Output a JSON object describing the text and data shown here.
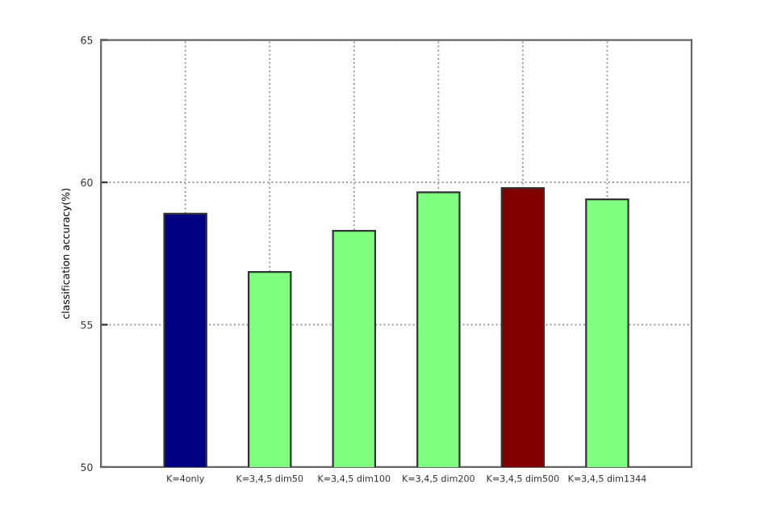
{
  "chart_data": {
    "type": "bar",
    "ylabel": "classification accuracy(%)",
    "categories": [
      "K=4only",
      "K=3,4,5 dim50",
      "K=3,4,5 dim100",
      "K=3,4,5 dim200",
      "K=3,4,5 dim500",
      "K=3,4,5 dim1344"
    ],
    "values": [
      58.9,
      56.85,
      58.3,
      59.65,
      59.8,
      59.4
    ],
    "colors": [
      "#000080",
      "#80ff80",
      "#80ff80",
      "#80ff80",
      "#800000",
      "#80ff80"
    ],
    "ylim": [
      50,
      65
    ],
    "yticks": [
      50,
      55,
      60,
      65
    ],
    "grid": true,
    "legend": false
  }
}
